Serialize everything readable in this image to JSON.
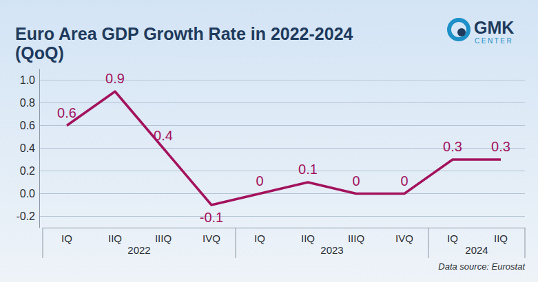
{
  "chart_data": {
    "type": "line",
    "title": "Euro Area GDP Growth Rate in 2022-2024 (QoQ)",
    "logo": "GMK CENTER",
    "source": "Data source: Eurostat",
    "categories": [
      "IQ",
      "IIQ",
      "IIIQ",
      "IVQ",
      "IQ",
      "IIQ",
      "IIIQ",
      "IVQ",
      "IQ",
      "IIQ"
    ],
    "category_groups": [
      "2022",
      "2022",
      "2022",
      "2022",
      "2023",
      "2023",
      "2023",
      "2023",
      "2024",
      "2024"
    ],
    "values": [
      0.6,
      0.9,
      0.4,
      -0.1,
      0,
      0.1,
      0,
      0,
      0.3,
      0.3
    ],
    "color": "#a3135d",
    "ylim": [
      -0.3,
      1.1
    ],
    "yticks": [
      -0.2,
      {
        "value": 0,
        "label": "0.0"
      },
      0.2,
      0.4,
      0.6,
      0.8,
      {
        "value": 1,
        "label": "1.0"
      }
    ],
    "grid": true,
    "data_labels": true
  }
}
